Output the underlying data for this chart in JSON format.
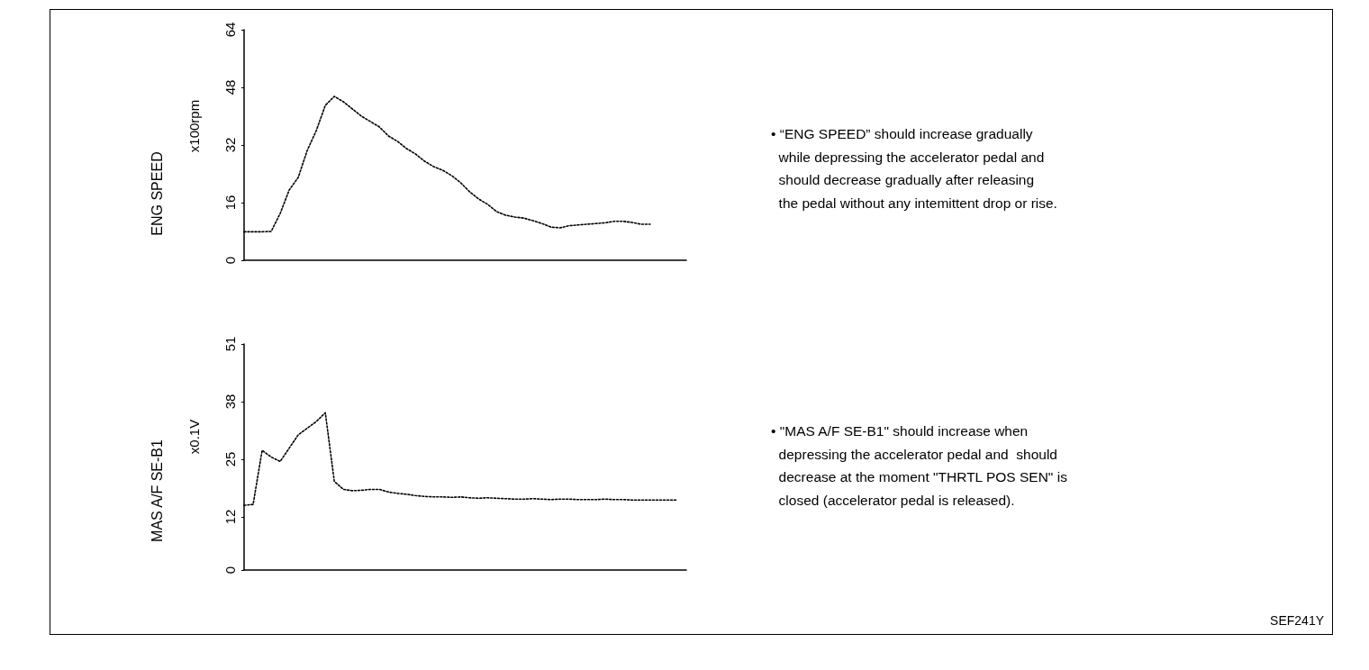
{
  "chart_data": [
    {
      "type": "line",
      "ylabel": "ENG SPEED",
      "annotations": [
        "x100rpm",
        "• “ENG SPEED” should increase gradually\n  while depressing the accelerator pedal and\n  should decrease gradually after releasing\n  the pedal without any intemittent drop or rise."
      ],
      "categories": [
        null,
        null,
        null,
        null,
        null,
        null,
        null,
        null,
        null,
        null,
        null,
        null,
        null,
        null,
        null,
        null,
        null,
        null,
        null,
        null,
        null,
        null,
        null,
        null,
        null,
        null,
        null,
        null,
        null,
        null,
        null,
        null,
        null,
        null,
        null,
        null,
        null,
        null,
        null,
        null,
        null,
        null,
        null,
        null,
        null,
        null,
        null,
        null,
        null,
        null
      ],
      "series": [
        {
          "color": "#000000",
          "values": [
            7.9,
            7.9,
            7.9,
            8,
            13,
            19.5,
            23,
            30.5,
            36,
            43,
            45.5,
            44,
            42,
            40,
            38.5,
            37,
            34.5,
            33,
            31,
            29.5,
            27.5,
            26,
            25,
            23.5,
            21.5,
            19,
            17,
            15.5,
            13.5,
            12.5,
            12,
            11.7,
            11,
            10.2,
            9.2,
            9,
            9.6,
            9.8,
            10,
            10.2,
            10.4,
            10.8,
            10.8,
            10.5,
            10,
            10,
            null,
            null,
            null,
            null
          ]
        }
      ],
      "ylim": [
        0,
        64
      ],
      "yticks": [
        0,
        16,
        32,
        48,
        64
      ],
      "tick_labels": "y",
      "grid": false,
      "marker": "none",
      "line_style": "dotted"
    },
    {
      "type": "line",
      "ylabel": "MAS A/F SE-B1",
      "annotations": [
        "x0.1V",
        "• \"MAS A/F SE-B1\" should increase when\n  depressing the accelerator pedal and  should\n  decrease at the moment \"THRTL POS SEN\" is\n  closed (accelerator pedal is released).",
        "SEF241Y"
      ],
      "categories": [
        null,
        null,
        null,
        null,
        null,
        null,
        null,
        null,
        null,
        null,
        null,
        null,
        null,
        null,
        null,
        null,
        null,
        null,
        null,
        null,
        null,
        null,
        null,
        null,
        null,
        null,
        null,
        null,
        null,
        null,
        null,
        null,
        null,
        null,
        null,
        null,
        null,
        null,
        null,
        null,
        null,
        null,
        null,
        null,
        null,
        null,
        null,
        null,
        null,
        null
      ],
      "series": [
        {
          "color": "#000000",
          "values": [
            14.6,
            14.8,
            27,
            25.5,
            24.5,
            27.5,
            30.5,
            32,
            33.5,
            35.5,
            20,
            18.2,
            17.9,
            18,
            18.2,
            18.2,
            17.6,
            17.3,
            17.1,
            16.8,
            16.6,
            16.5,
            16.5,
            16.4,
            16.5,
            16.3,
            16.2,
            16.3,
            16.2,
            16.1,
            16,
            16,
            16.1,
            16,
            15.9,
            16,
            16,
            15.9,
            15.9,
            15.9,
            16,
            15.9,
            15.9,
            15.8,
            15.8,
            15.8,
            15.8,
            15.8,
            15.8,
            null
          ]
        }
      ],
      "ylim": [
        0,
        51
      ],
      "yticks": [
        0,
        12,
        25,
        38,
        51
      ],
      "tick_labels": "y",
      "grid": false,
      "marker": "none",
      "line_style": "dotted"
    }
  ]
}
